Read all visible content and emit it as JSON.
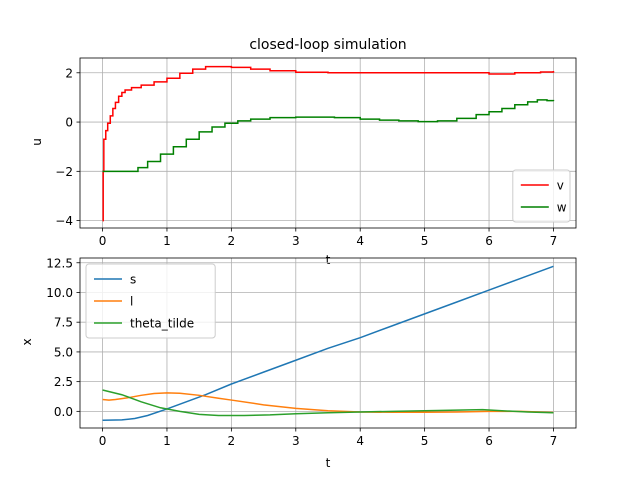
{
  "chart_data": [
    {
      "type": "line",
      "title": "closed-loop simulation",
      "xlabel": "t",
      "ylabel": "u",
      "xlim": [
        -0.35,
        7.35
      ],
      "ylim": [
        -4.3,
        2.6
      ],
      "xticks": [
        0,
        1,
        2,
        3,
        4,
        5,
        6,
        7
      ],
      "yticks": [
        -4,
        -2,
        0,
        2
      ],
      "grid": true,
      "legend_position": "lower-right",
      "series": [
        {
          "name": "v",
          "color": "#ff0000",
          "step": true,
          "points": [
            [
              0,
              -4.0
            ],
            [
              0.01,
              -2.0
            ],
            [
              0.02,
              -0.7
            ],
            [
              0.05,
              -0.35
            ],
            [
              0.08,
              -0.05
            ],
            [
              0.12,
              0.25
            ],
            [
              0.16,
              0.55
            ],
            [
              0.2,
              0.8
            ],
            [
              0.25,
              1.05
            ],
            [
              0.3,
              1.2
            ],
            [
              0.35,
              1.3
            ],
            [
              0.45,
              1.4
            ],
            [
              0.6,
              1.5
            ],
            [
              0.8,
              1.63
            ],
            [
              1.0,
              1.78
            ],
            [
              1.2,
              1.98
            ],
            [
              1.4,
              2.15
            ],
            [
              1.6,
              2.25
            ],
            [
              1.8,
              2.25
            ],
            [
              2.0,
              2.22
            ],
            [
              2.3,
              2.15
            ],
            [
              2.6,
              2.08
            ],
            [
              3.0,
              2.02
            ],
            [
              3.5,
              2.0
            ],
            [
              4.0,
              2.0
            ],
            [
              4.5,
              2.0
            ],
            [
              5.0,
              2.0
            ],
            [
              5.5,
              2.0
            ],
            [
              5.9,
              2.0
            ],
            [
              6.0,
              1.95
            ],
            [
              6.2,
              1.95
            ],
            [
              6.4,
              2.0
            ],
            [
              6.8,
              2.03
            ],
            [
              7.0,
              2.07
            ]
          ]
        },
        {
          "name": "w",
          "color": "#008000",
          "step": true,
          "points": [
            [
              0,
              -2.0
            ],
            [
              0.5,
              -2.0
            ],
            [
              0.55,
              -1.85
            ],
            [
              0.7,
              -1.6
            ],
            [
              0.9,
              -1.3
            ],
            [
              1.1,
              -1.0
            ],
            [
              1.3,
              -0.7
            ],
            [
              1.5,
              -0.4
            ],
            [
              1.7,
              -0.2
            ],
            [
              1.9,
              -0.05
            ],
            [
              2.1,
              0.05
            ],
            [
              2.3,
              0.12
            ],
            [
              2.6,
              0.18
            ],
            [
              3.0,
              0.2
            ],
            [
              3.3,
              0.2
            ],
            [
              3.6,
              0.18
            ],
            [
              4.0,
              0.12
            ],
            [
              4.3,
              0.08
            ],
            [
              4.6,
              0.05
            ],
            [
              4.9,
              0.02
            ],
            [
              5.2,
              0.05
            ],
            [
              5.5,
              0.15
            ],
            [
              5.8,
              0.3
            ],
            [
              6.0,
              0.42
            ],
            [
              6.2,
              0.55
            ],
            [
              6.4,
              0.7
            ],
            [
              6.6,
              0.82
            ],
            [
              6.75,
              0.9
            ],
            [
              6.9,
              0.87
            ],
            [
              7.0,
              0.85
            ]
          ]
        }
      ]
    },
    {
      "type": "line",
      "title": "",
      "xlabel": "t",
      "ylabel": "x",
      "xlim": [
        -0.35,
        7.35
      ],
      "ylim": [
        -1.4,
        12.9
      ],
      "xticks": [
        0,
        1,
        2,
        3,
        4,
        5,
        6,
        7
      ],
      "yticks": [
        0.0,
        2.5,
        5.0,
        7.5,
        10.0,
        12.5
      ],
      "grid": true,
      "legend_position": "upper-left",
      "series": [
        {
          "name": "s",
          "color": "#1f77b4",
          "points": [
            [
              0,
              -0.75
            ],
            [
              0.3,
              -0.72
            ],
            [
              0.5,
              -0.6
            ],
            [
              0.7,
              -0.35
            ],
            [
              1.0,
              0.2
            ],
            [
              1.3,
              0.8
            ],
            [
              1.6,
              1.4
            ],
            [
              2.0,
              2.3
            ],
            [
              2.5,
              3.3
            ],
            [
              3.0,
              4.3
            ],
            [
              3.5,
              5.3
            ],
            [
              4.0,
              6.2
            ],
            [
              4.5,
              7.2
            ],
            [
              5.0,
              8.2
            ],
            [
              5.5,
              9.2
            ],
            [
              6.0,
              10.2
            ],
            [
              6.5,
              11.2
            ],
            [
              7.0,
              12.2
            ]
          ]
        },
        {
          "name": "l",
          "color": "#ff7f0e",
          "points": [
            [
              0,
              1.0
            ],
            [
              0.1,
              0.95
            ],
            [
              0.2,
              1.0
            ],
            [
              0.4,
              1.15
            ],
            [
              0.6,
              1.35
            ],
            [
              0.8,
              1.5
            ],
            [
              1.0,
              1.55
            ],
            [
              1.2,
              1.52
            ],
            [
              1.5,
              1.35
            ],
            [
              1.8,
              1.1
            ],
            [
              2.0,
              0.95
            ],
            [
              2.5,
              0.55
            ],
            [
              3.0,
              0.25
            ],
            [
              3.5,
              0.05
            ],
            [
              4.0,
              -0.05
            ],
            [
              4.5,
              -0.08
            ],
            [
              5.0,
              -0.08
            ],
            [
              5.5,
              -0.05
            ],
            [
              6.0,
              0.0
            ],
            [
              6.5,
              0.0
            ],
            [
              7.0,
              -0.1
            ]
          ]
        },
        {
          "name": "theta_tilde",
          "color": "#2ca02c",
          "points": [
            [
              0,
              1.8
            ],
            [
              0.3,
              1.4
            ],
            [
              0.6,
              0.8
            ],
            [
              0.9,
              0.3
            ],
            [
              1.2,
              0.0
            ],
            [
              1.5,
              -0.25
            ],
            [
              1.8,
              -0.35
            ],
            [
              2.2,
              -0.35
            ],
            [
              2.6,
              -0.3
            ],
            [
              3.0,
              -0.2
            ],
            [
              3.5,
              -0.12
            ],
            [
              4.0,
              -0.05
            ],
            [
              4.5,
              0.0
            ],
            [
              5.0,
              0.05
            ],
            [
              5.5,
              0.1
            ],
            [
              5.9,
              0.15
            ],
            [
              6.2,
              0.05
            ],
            [
              6.6,
              -0.05
            ],
            [
              7.0,
              -0.12
            ]
          ]
        }
      ]
    }
  ]
}
